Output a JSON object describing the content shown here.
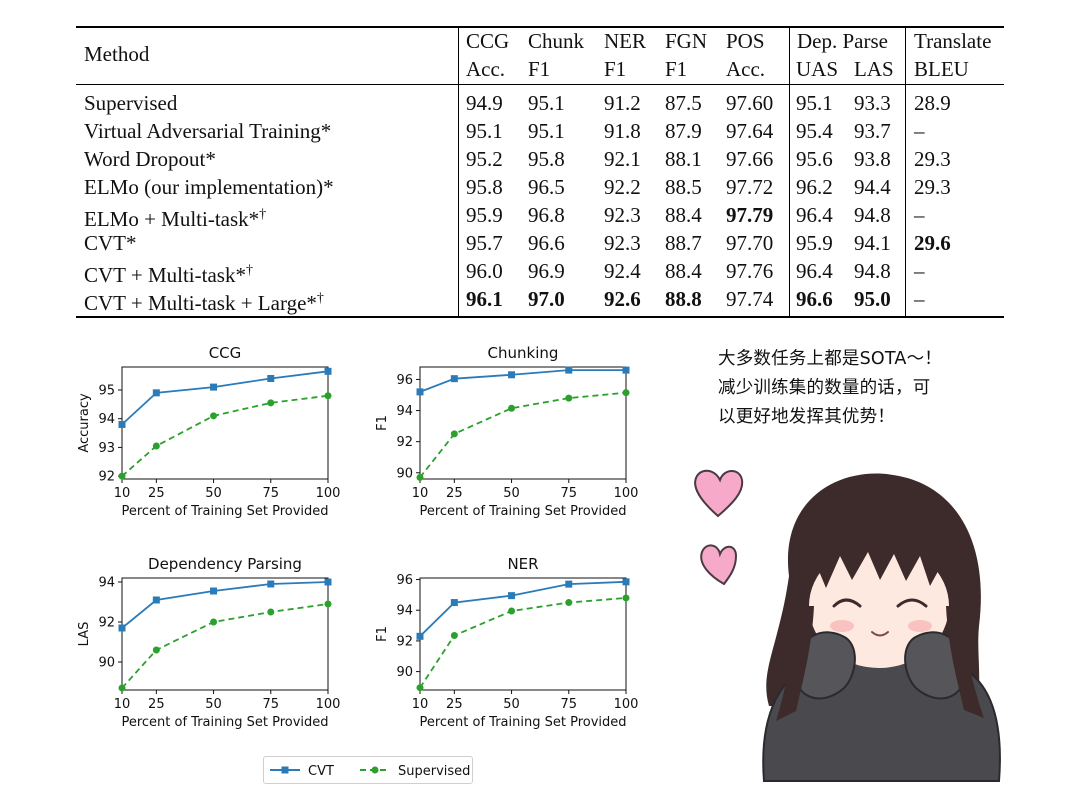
{
  "table": {
    "header_row1": [
      "Method",
      "CCG",
      "Chunk",
      "NER",
      "FGN",
      "POS",
      "Dep. Parse",
      "Translate"
    ],
    "header_row2": [
      "Acc.",
      "F1",
      "F1",
      "F1",
      "Acc.",
      "UAS",
      "LAS",
      "BLEU"
    ],
    "rows": [
      {
        "method": "Supervised",
        "sup": "",
        "values": [
          "94.9",
          "95.1",
          "91.2",
          "87.5",
          "97.60",
          "95.1",
          "93.3",
          "28.9"
        ],
        "bold": [
          false,
          false,
          false,
          false,
          false,
          false,
          false,
          false
        ]
      },
      {
        "method": "Virtual Adversarial Training*",
        "sup": "",
        "values": [
          "95.1",
          "95.1",
          "91.8",
          "87.9",
          "97.64",
          "95.4",
          "93.7",
          "–"
        ],
        "bold": [
          false,
          false,
          false,
          false,
          false,
          false,
          false,
          false
        ]
      },
      {
        "method": "Word Dropout*",
        "sup": "",
        "values": [
          "95.2",
          "95.8",
          "92.1",
          "88.1",
          "97.66",
          "95.6",
          "93.8",
          "29.3"
        ],
        "bold": [
          false,
          false,
          false,
          false,
          false,
          false,
          false,
          false
        ]
      },
      {
        "method": "ELMo (our implementation)*",
        "sup": "",
        "values": [
          "95.8",
          "96.5",
          "92.2",
          "88.5",
          "97.72",
          "96.2",
          "94.4",
          "29.3"
        ],
        "bold": [
          false,
          false,
          false,
          false,
          false,
          false,
          false,
          false
        ]
      },
      {
        "method": "ELMo + Multi-task*",
        "sup": "†",
        "values": [
          "95.9",
          "96.8",
          "92.3",
          "88.4",
          "97.79",
          "96.4",
          "94.8",
          "–"
        ],
        "bold": [
          false,
          false,
          false,
          false,
          true,
          false,
          false,
          false
        ]
      },
      {
        "method": "CVT*",
        "sup": "",
        "values": [
          "95.7",
          "96.6",
          "92.3",
          "88.7",
          "97.70",
          "95.9",
          "94.1",
          "29.6"
        ],
        "bold": [
          false,
          false,
          false,
          false,
          false,
          false,
          false,
          true
        ]
      },
      {
        "method": "CVT + Multi-task*",
        "sup": "†",
        "values": [
          "96.0",
          "96.9",
          "92.4",
          "88.4",
          "97.76",
          "96.4",
          "94.8",
          "–"
        ],
        "bold": [
          false,
          false,
          false,
          false,
          false,
          false,
          false,
          false
        ]
      },
      {
        "method": "CVT + Multi-task + Large*",
        "sup": "†",
        "values": [
          "96.1",
          "97.0",
          "92.6",
          "88.8",
          "97.74",
          "96.6",
          "95.0",
          "–"
        ],
        "bold": [
          true,
          true,
          true,
          true,
          false,
          true,
          true,
          false
        ]
      }
    ]
  },
  "chart_data": [
    {
      "type": "line",
      "title": "CCG",
      "xlabel": "Percent of Training Set Provided",
      "ylabel": "Accuracy",
      "x": [
        10,
        25,
        50,
        75,
        100
      ],
      "xlim": [
        10,
        100
      ],
      "ylim": [
        91.9,
        95.8
      ],
      "yticks": [
        92,
        93,
        94,
        95
      ],
      "series": [
        {
          "name": "CVT",
          "values": [
            93.8,
            94.9,
            95.1,
            95.4,
            95.65
          ]
        },
        {
          "name": "Supervised",
          "values": [
            92.0,
            93.05,
            94.1,
            94.55,
            94.8
          ]
        }
      ]
    },
    {
      "type": "line",
      "title": "Chunking",
      "xlabel": "Percent of Training Set Provided",
      "ylabel": "F1",
      "x": [
        10,
        25,
        50,
        75,
        100
      ],
      "xlim": [
        10,
        100
      ],
      "ylim": [
        89.6,
        96.8
      ],
      "yticks": [
        90,
        92,
        94,
        96
      ],
      "series": [
        {
          "name": "CVT",
          "values": [
            95.2,
            96.05,
            96.3,
            96.6,
            96.6
          ]
        },
        {
          "name": "Supervised",
          "values": [
            89.7,
            92.5,
            94.15,
            94.8,
            95.15
          ]
        }
      ]
    },
    {
      "type": "line",
      "title": "Dependency Parsing",
      "xlabel": "Percent of Training Set Provided",
      "ylabel": "LAS",
      "x": [
        10,
        25,
        50,
        75,
        100
      ],
      "xlim": [
        10,
        100
      ],
      "ylim": [
        88.6,
        94.2
      ],
      "yticks": [
        90,
        92,
        94
      ],
      "series": [
        {
          "name": "CVT",
          "values": [
            91.7,
            93.1,
            93.55,
            93.9,
            94.0
          ]
        },
        {
          "name": "Supervised",
          "values": [
            88.7,
            90.6,
            92.0,
            92.5,
            92.9
          ]
        }
      ]
    },
    {
      "type": "line",
      "title": "NER",
      "xlabel": "Percent of Training Set Provided",
      "ylabel": "F1",
      "x": [
        10,
        25,
        50,
        75,
        100
      ],
      "xlim": [
        10,
        100
      ],
      "ylim": [
        88.8,
        96.1
      ],
      "yticks": [
        90,
        92,
        94,
        96
      ],
      "series": [
        {
          "name": "CVT",
          "values": [
            92.3,
            94.5,
            94.95,
            95.7,
            95.85
          ]
        },
        {
          "name": "Supervised",
          "values": [
            88.95,
            92.35,
            93.95,
            94.5,
            94.8
          ]
        }
      ]
    }
  ],
  "legend": {
    "items": [
      "CVT",
      "Supervised"
    ]
  },
  "colors": {
    "cvt": "#2b7bb9",
    "supervised": "#2ca02c"
  },
  "note": {
    "lines": [
      "大多数任务上都是SOTA～！",
      "减少训练集的数量的话，可",
      "以更好地发挥其优势！"
    ]
  }
}
